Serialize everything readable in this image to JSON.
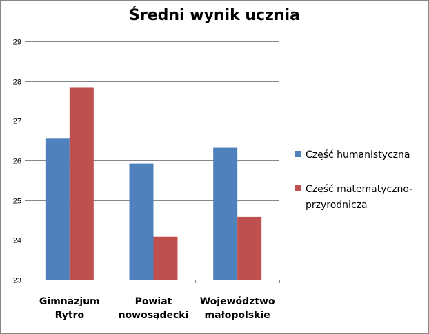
{
  "chart_data": {
    "type": "bar",
    "title": "Średni wynik ucznia",
    "categories": [
      [
        "Gimnazjum",
        "Rytro"
      ],
      [
        "Powiat",
        "nowosądecki"
      ],
      [
        "Województwo",
        "małopolskie"
      ]
    ],
    "series": [
      {
        "name": "Część humanistyczna",
        "color": "#4F81BD",
        "values": [
          26.55,
          25.92,
          26.32
        ]
      },
      {
        "name": "Część matematyczno-przyrodnicza",
        "color": "#C0504D",
        "values": [
          27.83,
          24.08,
          24.58
        ]
      }
    ],
    "legend_lines": [
      [
        "Część humanistyczna"
      ],
      [
        "Część matematyczno-",
        "przyrodnicza"
      ]
    ],
    "ylim": [
      23,
      29
    ],
    "yticks": [
      "23",
      "24",
      "25",
      "26",
      "27",
      "28",
      "29"
    ],
    "grid": true,
    "legend_position": "right"
  }
}
